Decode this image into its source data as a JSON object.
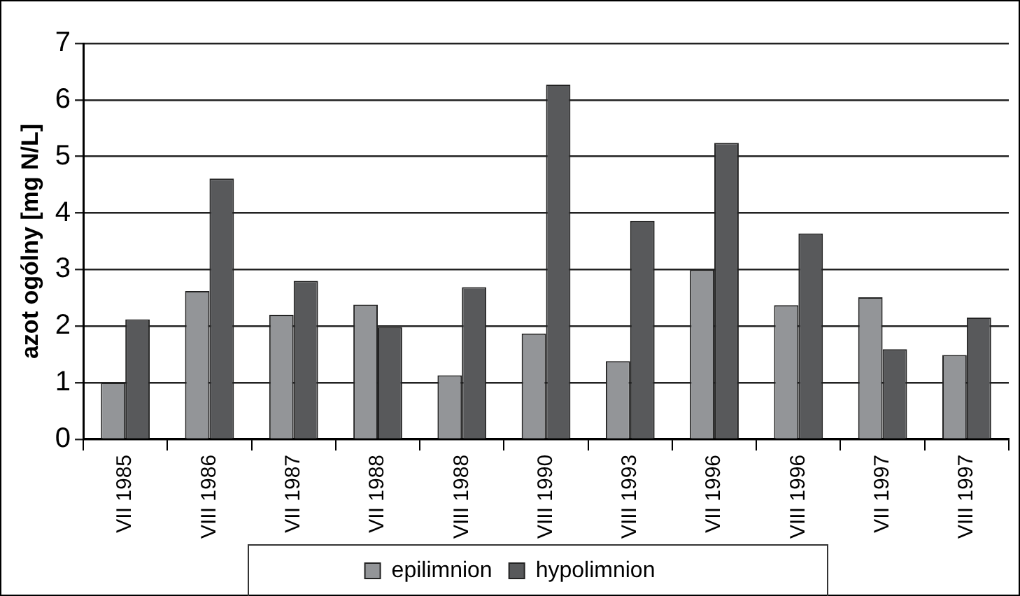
{
  "chart_data": {
    "type": "bar",
    "ylabel": "azot ogólny [mg N/L]",
    "categories": [
      "VII 1985",
      "VIII 1986",
      "VII 1987",
      "VII 1988",
      "VIII 1988",
      "VIII 1990",
      "VIII 1993",
      "VII 1996",
      "VIII 1996",
      "VII 1997",
      "VIII 1997"
    ],
    "series": [
      {
        "name": "epilimnion",
        "color": "#939598",
        "values": [
          1.0,
          2.62,
          2.2,
          2.38,
          1.13,
          1.87,
          1.38,
          3.0,
          2.37,
          2.51,
          1.49
        ]
      },
      {
        "name": "hypolimnion",
        "color": "#58595b",
        "values": [
          2.12,
          4.61,
          2.8,
          1.98,
          2.69,
          6.27,
          3.86,
          5.24,
          3.64,
          1.59,
          2.15
        ]
      }
    ],
    "ylim": [
      0,
      7
    ],
    "yticks": [
      0,
      1,
      2,
      3,
      4,
      5,
      6,
      7
    ],
    "grid": "y",
    "legend": "bottom"
  }
}
